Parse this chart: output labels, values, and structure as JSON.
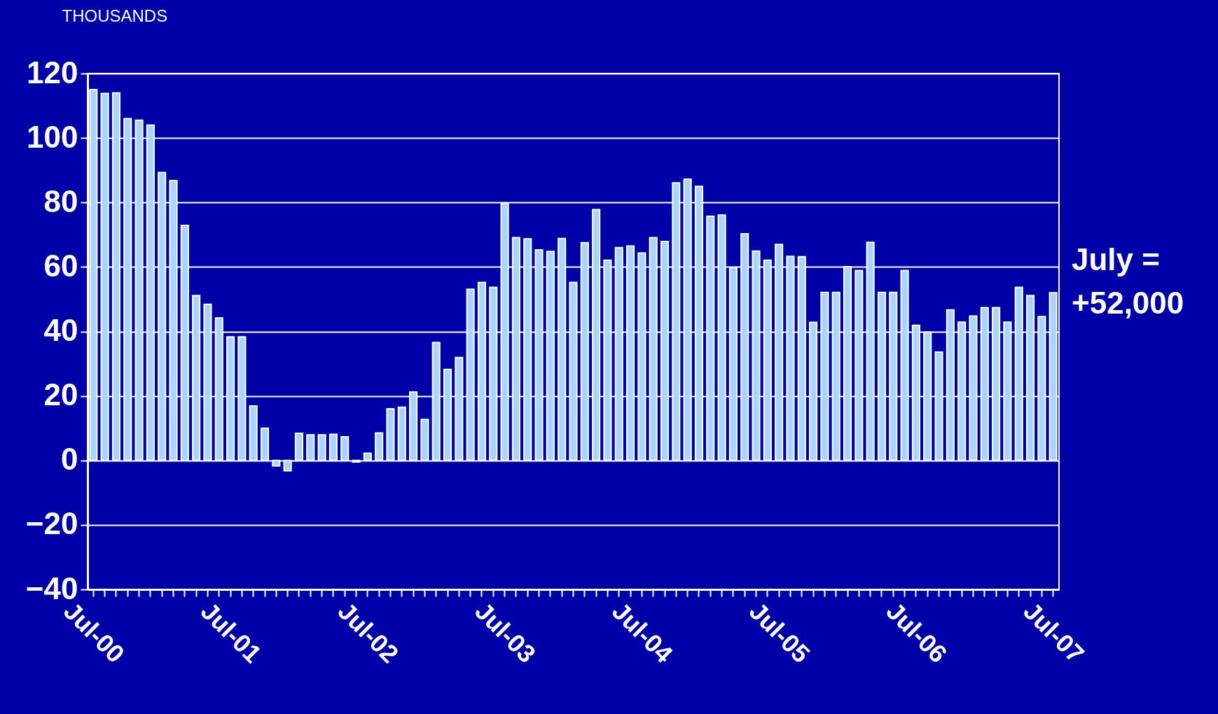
{
  "chart_data": {
    "type": "bar",
    "ylabel": "THOUSANDS",
    "categories": [
      "Jul-00",
      null,
      null,
      null,
      null,
      null,
      null,
      null,
      null,
      null,
      null,
      null,
      "Jul-01",
      null,
      null,
      null,
      null,
      null,
      null,
      null,
      null,
      null,
      null,
      null,
      "Jul-02",
      null,
      null,
      null,
      null,
      null,
      null,
      null,
      null,
      null,
      null,
      null,
      "Jul-03",
      null,
      null,
      null,
      null,
      null,
      null,
      null,
      null,
      null,
      null,
      null,
      "Jul-04",
      null,
      null,
      null,
      null,
      null,
      null,
      null,
      null,
      null,
      null,
      null,
      "Jul-05",
      null,
      null,
      null,
      null,
      null,
      null,
      null,
      null,
      null,
      null,
      null,
      "Jul-06",
      null,
      null,
      null,
      null,
      null,
      null,
      null,
      null,
      null,
      null,
      null,
      "Jul-07"
    ],
    "values": [
      115,
      113.8,
      114,
      106,
      105.5,
      104,
      89.3,
      86.8,
      72.9,
      51.1,
      48.4,
      44.2,
      38.3,
      38.3,
      16.9,
      10,
      -1.7,
      -3.2,
      8.4,
      7.9,
      7.9,
      8.1,
      7.3,
      -0.5,
      2.2,
      8.5,
      16,
      16.5,
      21.2,
      12.7,
      36.6,
      28.2,
      31.9,
      53.1,
      55.2,
      53.7,
      79.8,
      69.1,
      68.7,
      65.3,
      64.8,
      68.8,
      55.2,
      67.5,
      77.8,
      62.1,
      66,
      66.5,
      64.3,
      69.1,
      67.9,
      86.1,
      87.2,
      85,
      75.7,
      76.1,
      59.8,
      70.3,
      64.9,
      62.1,
      67,
      63.3,
      63.2,
      42.8,
      52.1,
      52.1,
      60.1,
      58.9,
      67.6,
      52.1,
      52.1,
      58.9,
      41.9,
      39.8,
      33.6,
      46.7,
      42.9,
      44.8,
      47.4,
      47.4,
      42.9,
      53.7,
      51.1,
      44.6,
      52
    ],
    "color": "#a8d4ff",
    "ylim": [
      -40,
      120
    ],
    "yticks": [
      -40,
      -20,
      0,
      20,
      40,
      60,
      80,
      100,
      120
    ],
    "grid": "y",
    "annotations": [
      "July = +52,000"
    ]
  }
}
